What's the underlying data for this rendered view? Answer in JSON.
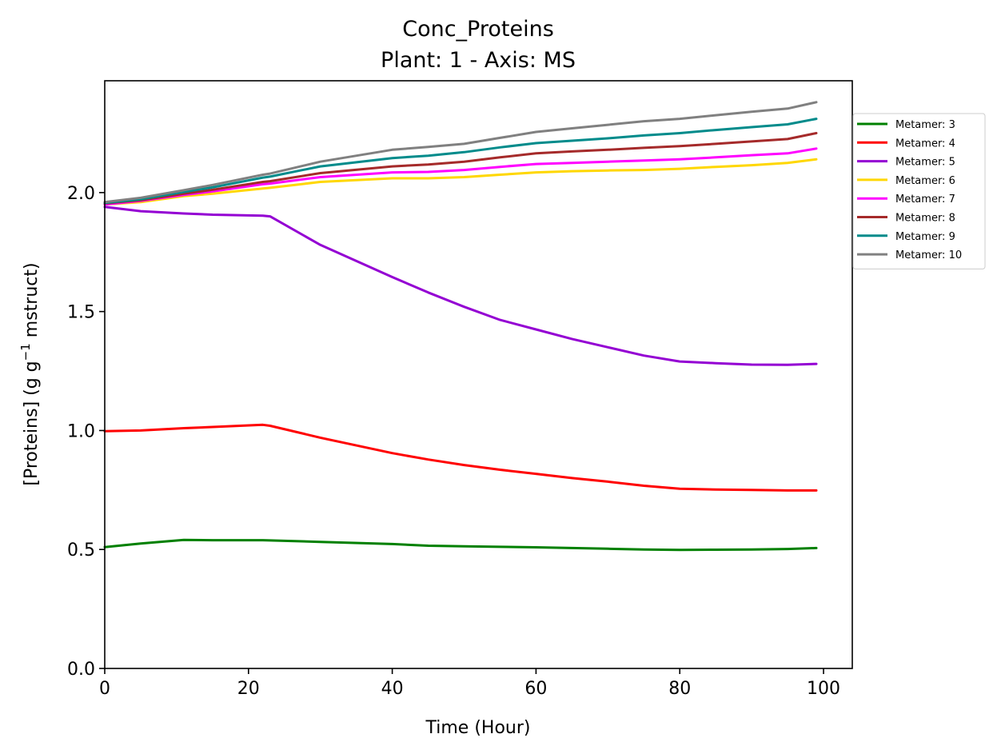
{
  "chart_data": {
    "type": "line",
    "title": "Conc_Proteins",
    "subtitle": "Plant: 1 - Axis: MS",
    "xlabel": "Time (Hour)",
    "ylabel_main": "[Proteins] (g g",
    "ylabel_sup": "−1",
    "ylabel_tail": " mstruct)",
    "xlim": [
      0,
      104
    ],
    "ylim": [
      0,
      2.47
    ],
    "x_ticks": [
      0,
      20,
      40,
      60,
      80,
      100
    ],
    "x_tick_labels": [
      "0",
      "20",
      "40",
      "60",
      "80",
      "100"
    ],
    "y_ticks": [
      0,
      0.5,
      1.0,
      1.5,
      2.0
    ],
    "y_tick_labels": [
      "0.0",
      "0.5",
      "1.0",
      "1.5",
      "2.0"
    ],
    "grid": false,
    "legend_position": "outside-top-right",
    "x": [
      0,
      5,
      11,
      15,
      22,
      23,
      30,
      40,
      45,
      50,
      55,
      60,
      65,
      70,
      75,
      80,
      85,
      90,
      95,
      99
    ],
    "series": [
      {
        "name": "Metamer: 3",
        "color": "#008000",
        "values": [
          0.51,
          0.525,
          0.54,
          0.539,
          0.539,
          0.538,
          0.532,
          0.523,
          0.516,
          0.513,
          0.511,
          0.509,
          0.506,
          0.503,
          0.5,
          0.498,
          0.499,
          0.5,
          0.502,
          0.506
        ]
      },
      {
        "name": "Metamer: 4",
        "color": "#ff0000",
        "values": [
          0.997,
          1.0,
          1.01,
          1.015,
          1.024,
          1.02,
          0.97,
          0.905,
          0.878,
          0.855,
          0.835,
          0.818,
          0.8,
          0.785,
          0.768,
          0.755,
          0.752,
          0.75,
          0.748,
          0.748
        ]
      },
      {
        "name": "Metamer: 5",
        "color": "#9400d3",
        "values": [
          1.94,
          1.922,
          1.912,
          1.907,
          1.903,
          1.9,
          1.78,
          1.645,
          1.58,
          1.52,
          1.465,
          1.425,
          1.385,
          1.35,
          1.315,
          1.29,
          1.283,
          1.277,
          1.276,
          1.28
        ]
      },
      {
        "name": "Metamer: 6",
        "color": "#ffd700",
        "values": [
          1.95,
          1.96,
          1.985,
          1.995,
          2.017,
          2.02,
          2.045,
          2.06,
          2.06,
          2.065,
          2.075,
          2.085,
          2.09,
          2.093,
          2.095,
          2.1,
          2.108,
          2.115,
          2.125,
          2.14
        ]
      },
      {
        "name": "Metamer: 7",
        "color": "#ff00ff",
        "values": [
          1.95,
          1.965,
          1.99,
          2.005,
          2.035,
          2.038,
          2.065,
          2.085,
          2.087,
          2.095,
          2.108,
          2.12,
          2.125,
          2.13,
          2.135,
          2.14,
          2.148,
          2.157,
          2.165,
          2.185
        ]
      },
      {
        "name": "Metamer: 8",
        "color": "#a52a2a",
        "values": [
          1.955,
          1.968,
          1.995,
          2.012,
          2.045,
          2.048,
          2.082,
          2.11,
          2.118,
          2.13,
          2.148,
          2.165,
          2.173,
          2.18,
          2.188,
          2.195,
          2.205,
          2.215,
          2.225,
          2.25
        ]
      },
      {
        "name": "Metamer: 9",
        "color": "#008b8b",
        "values": [
          1.957,
          1.972,
          2.003,
          2.022,
          2.063,
          2.067,
          2.11,
          2.145,
          2.155,
          2.17,
          2.19,
          2.208,
          2.218,
          2.228,
          2.24,
          2.25,
          2.263,
          2.275,
          2.287,
          2.31
        ]
      },
      {
        "name": "Metamer: 10",
        "color": "#808080",
        "values": [
          1.96,
          1.978,
          2.01,
          2.032,
          2.075,
          2.08,
          2.13,
          2.18,
          2.192,
          2.205,
          2.23,
          2.255,
          2.27,
          2.285,
          2.3,
          2.31,
          2.325,
          2.34,
          2.353,
          2.38
        ]
      }
    ]
  }
}
